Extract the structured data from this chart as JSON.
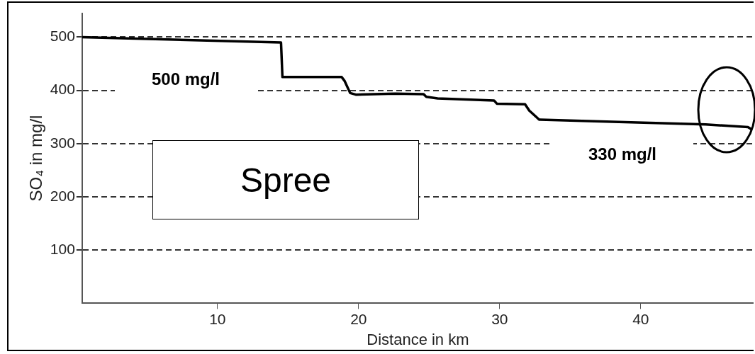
{
  "chart_data": {
    "type": "line",
    "xlabel": "Distance in km",
    "ylabel": "SO₄ in mg/l",
    "x": [
      0.4,
      14.5,
      14.6,
      18.8,
      19.0,
      19.4,
      19.8,
      22.6,
      24.6,
      24.8,
      25.6,
      29.6,
      29.8,
      31.8,
      32.1,
      32.6,
      32.8,
      38.0,
      44.6,
      47.6,
      47.9
    ],
    "series": [
      {
        "color": "#000000",
        "values": [
          500,
          490,
          425,
          425,
          418,
          395,
          392,
          394,
          393,
          388,
          385,
          381,
          375,
          374,
          362,
          350,
          345,
          341,
          336,
          331,
          326
        ]
      }
    ],
    "xlim": [
      0.4,
      48
    ],
    "xticks": [
      10,
      20,
      30,
      40
    ],
    "ylim": [
      0,
      545
    ],
    "yticks": [
      100,
      200,
      300,
      400,
      500
    ],
    "grid": "y",
    "annotations": [
      "500 mg/l",
      "330 mg/l",
      "Spree"
    ]
  }
}
